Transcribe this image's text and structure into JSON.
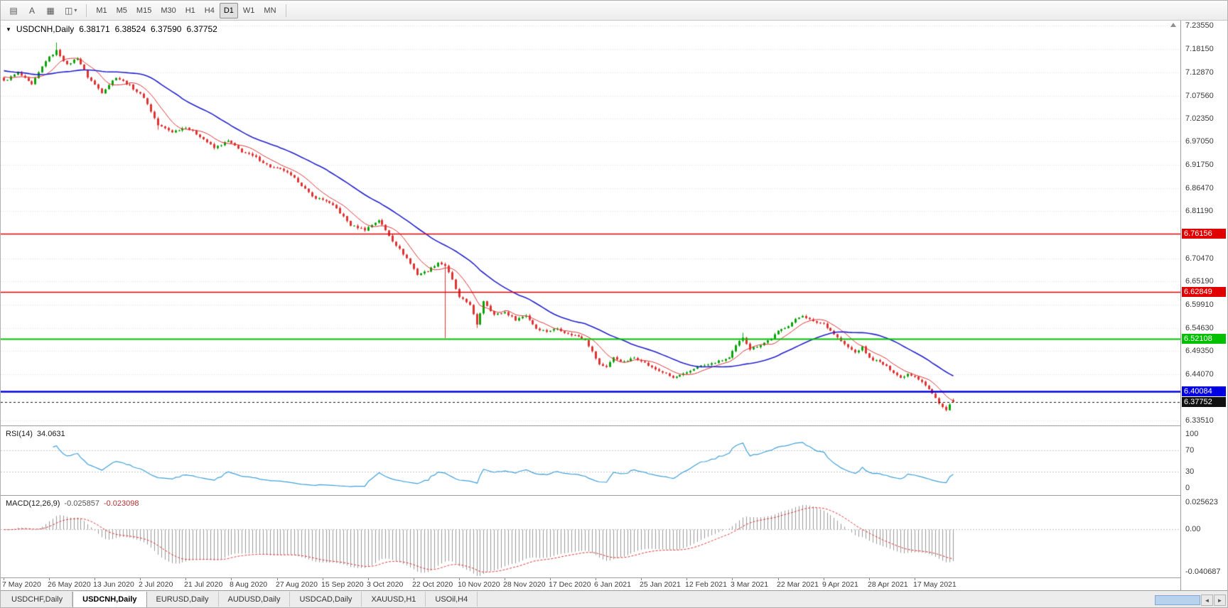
{
  "toolbar": {
    "icon_buttons": [
      {
        "id": "charts-grid",
        "glyph": "▤"
      },
      {
        "id": "cursor-a",
        "glyph": "A"
      },
      {
        "id": "chart-type",
        "glyph": "▦"
      },
      {
        "id": "zoom",
        "glyph": "◫"
      }
    ],
    "dropdown_caret": "▾",
    "timeframes": [
      "M1",
      "M5",
      "M15",
      "M30",
      "H1",
      "H4",
      "D1",
      "W1",
      "MN"
    ],
    "active_timeframe": "D1"
  },
  "chart_header": {
    "collapse_glyph": "▼",
    "symbol_period": "USDCNH,Daily",
    "open": "6.38171",
    "high": "6.38524",
    "low": "6.37590",
    "close": "6.37752"
  },
  "colors": {
    "up": "#0aa30a",
    "down": "#e03232",
    "ma_fast": "#dd3333",
    "ma_slow": "#2222cc",
    "rsi": "#3f9fd8",
    "macd_hist": "#999999",
    "macd_signal": "#dd3333",
    "grid": "#dedede"
  },
  "chart_data": {
    "type": "candlestick",
    "symbol": "USDCNH",
    "timeframe": "Daily",
    "y_range": [
      6.3238,
      7.2465
    ],
    "candle_count": 272,
    "x_tick_step": 13,
    "price_axis_ticks": [
      "7.23550",
      "7.18150",
      "7.12870",
      "7.07560",
      "7.02350",
      "6.97050",
      "6.91750",
      "6.86470",
      "6.81190",
      "6.70470",
      "6.65190",
      "6.59910",
      "6.54630",
      "6.49350",
      "6.44070",
      "6.33510"
    ],
    "x_tick_labels": [
      "7 May 2020",
      "26 May 2020",
      "13 Jun 2020",
      "2 Jul 2020",
      "21 Jul 2020",
      "8 Aug 2020",
      "27 Aug 2020",
      "15 Sep 2020",
      "3 Oct 2020",
      "22 Oct 2020",
      "10 Nov 2020",
      "28 Nov 2020",
      "17 Dec 2020",
      "6 Jan 2021",
      "25 Jan 2021",
      "12 Feb 2021",
      "3 Mar 2021",
      "22 Mar 2021",
      "9 Apr 2021",
      "28 Apr 2021",
      "17 May 2021"
    ],
    "levels": [
      {
        "label": "6.76156",
        "value": 6.76156,
        "color": "#e00000",
        "style": "solid",
        "width": 1.6
      },
      {
        "label": "6.62849",
        "value": 6.62849,
        "color": "#e00000",
        "style": "solid",
        "width": 1.6
      },
      {
        "label": "6.52108",
        "value": 6.52108,
        "color": "#00c000",
        "style": "solid",
        "width": 2
      },
      {
        "label": "6.40084",
        "value": 6.40084,
        "color": "#0000e0",
        "style": "solid",
        "width": 2.4
      },
      {
        "label": "6.37752",
        "value": 6.37752,
        "color": "#111111",
        "style": "dashed",
        "width": 1
      }
    ],
    "close_path_anchors": [
      [
        0,
        7.108
      ],
      [
        4,
        7.128
      ],
      [
        8,
        7.1
      ],
      [
        12,
        7.155
      ],
      [
        15,
        7.178
      ],
      [
        18,
        7.145
      ],
      [
        21,
        7.162
      ],
      [
        24,
        7.118
      ],
      [
        28,
        7.083
      ],
      [
        32,
        7.118
      ],
      [
        36,
        7.098
      ],
      [
        40,
        7.072
      ],
      [
        44,
        7.008
      ],
      [
        48,
        6.993
      ],
      [
        52,
        7.004
      ],
      [
        56,
        6.983
      ],
      [
        60,
        6.956
      ],
      [
        64,
        6.972
      ],
      [
        68,
        6.948
      ],
      [
        72,
        6.934
      ],
      [
        76,
        6.913
      ],
      [
        80,
        6.905
      ],
      [
        84,
        6.88
      ],
      [
        88,
        6.845
      ],
      [
        92,
        6.836
      ],
      [
        95,
        6.818
      ],
      [
        99,
        6.78
      ],
      [
        103,
        6.77
      ],
      [
        107,
        6.792
      ],
      [
        111,
        6.745
      ],
      [
        115,
        6.705
      ],
      [
        118,
        6.668
      ],
      [
        121,
        6.676
      ],
      [
        124,
        6.695
      ],
      [
        126,
        6.688
      ],
      [
        128,
        6.655
      ],
      [
        130,
        6.615
      ],
      [
        133,
        6.6
      ],
      [
        135,
        6.552
      ],
      [
        137,
        6.608
      ],
      [
        140,
        6.576
      ],
      [
        143,
        6.582
      ],
      [
        146,
        6.565
      ],
      [
        149,
        6.575
      ],
      [
        152,
        6.545
      ],
      [
        155,
        6.538
      ],
      [
        158,
        6.545
      ],
      [
        161,
        6.532
      ],
      [
        164,
        6.527
      ],
      [
        166,
        6.52
      ],
      [
        168,
        6.492
      ],
      [
        170,
        6.462
      ],
      [
        172,
        6.458
      ],
      [
        174,
        6.478
      ],
      [
        177,
        6.468
      ],
      [
        180,
        6.478
      ],
      [
        182,
        6.472
      ],
      [
        185,
        6.455
      ],
      [
        188,
        6.445
      ],
      [
        191,
        6.432
      ],
      [
        195,
        6.443
      ],
      [
        198,
        6.458
      ],
      [
        201,
        6.462
      ],
      [
        204,
        6.47
      ],
      [
        207,
        6.478
      ],
      [
        209,
        6.505
      ],
      [
        211,
        6.525
      ],
      [
        213,
        6.498
      ],
      [
        216,
        6.508
      ],
      [
        219,
        6.522
      ],
      [
        221,
        6.538
      ],
      [
        224,
        6.552
      ],
      [
        226,
        6.565
      ],
      [
        228,
        6.575
      ],
      [
        231,
        6.56
      ],
      [
        234,
        6.556
      ],
      [
        237,
        6.532
      ],
      [
        240,
        6.508
      ],
      [
        243,
        6.49
      ],
      [
        245,
        6.502
      ],
      [
        247,
        6.477
      ],
      [
        250,
        6.468
      ],
      [
        253,
        6.452
      ],
      [
        256,
        6.432
      ],
      [
        258,
        6.442
      ],
      [
        260,
        6.436
      ],
      [
        262,
        6.424
      ],
      [
        264,
        6.406
      ],
      [
        266,
        6.386
      ],
      [
        268,
        6.366
      ],
      [
        269,
        6.358
      ],
      [
        270,
        6.371
      ],
      [
        271,
        6.3775
      ]
    ],
    "spikes": [
      {
        "i": 15,
        "h": 7.1965
      },
      {
        "i": 44,
        "l": 6.998
      },
      {
        "i": 126,
        "l": 6.523
      },
      {
        "i": 135,
        "l": 6.546
      },
      {
        "i": 211,
        "h": 6.535
      },
      {
        "i": 269,
        "l": 6.356
      }
    ],
    "last_candle": {
      "o": 6.38171,
      "h": 6.38524,
      "l": 6.3759,
      "c": 6.37752
    },
    "noise": {
      "close": 0.0045,
      "wick": 0.003,
      "pre_trend": [
        7.115,
        0.0012
      ]
    },
    "moving_averages": [
      {
        "period": 8,
        "color_key": "ma_fast",
        "width": 1
      },
      {
        "period": 30,
        "color_key": "ma_slow",
        "width": 1.6
      }
    ],
    "indicators": {
      "rsi": {
        "label": "RSI(14)",
        "period": 14,
        "current": "34.0631",
        "guides": [
          70,
          30
        ],
        "ticks": [
          {
            "label": "100",
            "value": 100
          },
          {
            "label": "70",
            "value": 70
          },
          {
            "label": "30",
            "value": 30
          },
          {
            "label": "0",
            "value": 0
          }
        ]
      },
      "macd": {
        "label": "MACD(12,26,9)",
        "fast": 12,
        "slow": 26,
        "signal": 9,
        "current_main": "-0.025857",
        "current_signal": "-0.023098",
        "range": [
          -0.040687,
          0.025623
        ],
        "ticks": [
          {
            "label": "0.025623",
            "value": 0.025623
          },
          {
            "label": "0.00",
            "value": 0
          },
          {
            "label": "-0.040687",
            "value": -0.040687
          }
        ]
      }
    }
  },
  "tabs": {
    "items": [
      "USDCHF,Daily",
      "USDCNH,Daily",
      "EURUSD,Daily",
      "AUDUSD,Daily",
      "USDCAD,Daily",
      "XAUUSD,H1",
      "USOil,H4"
    ],
    "active_index": 1
  },
  "scrollbar": {
    "left_glyph": "◄",
    "right_glyph": "►"
  }
}
